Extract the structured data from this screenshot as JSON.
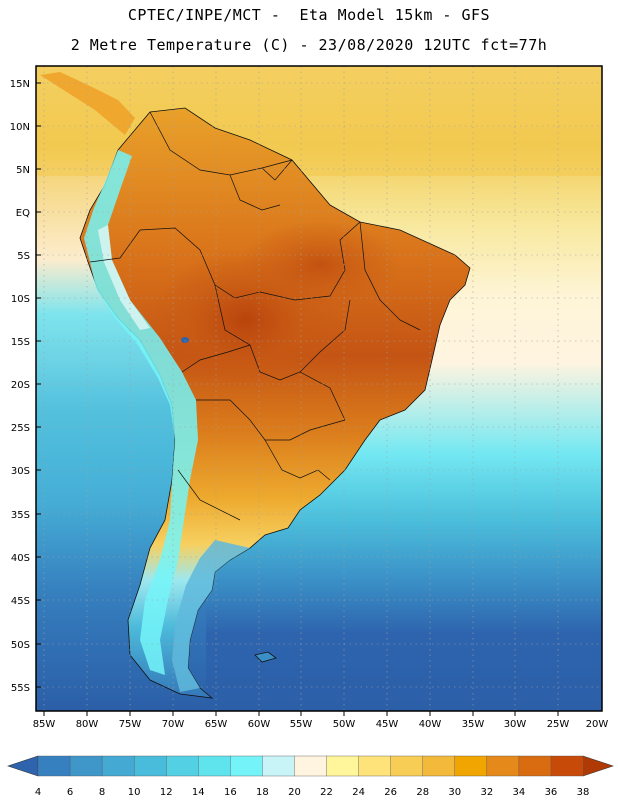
{
  "header": {
    "line1": "CPTEC/INPE/MCT -  Eta Model 15km - GFS",
    "line2": "2 Metre Temperature (C) - 23/08/2020 12UTC fct=77h"
  },
  "map": {
    "region": "South America",
    "lat_labels": [
      "15N",
      "10N",
      "5N",
      "EQ",
      "5S",
      "10S",
      "15S",
      "20S",
      "25S",
      "30S",
      "35S",
      "40S",
      "45S",
      "50S",
      "55S"
    ],
    "lon_labels": [
      "85W",
      "80W",
      "75W",
      "70W",
      "65W",
      "60W",
      "55W",
      "50W",
      "45W",
      "40W",
      "35W",
      "30W",
      "25W",
      "20W"
    ]
  },
  "colorbar": {
    "labels": [
      "4",
      "6",
      "8",
      "10",
      "12",
      "14",
      "16",
      "18",
      "20",
      "22",
      "24",
      "26",
      "28",
      "30",
      "32",
      "34",
      "36",
      "38"
    ],
    "colors": [
      "#2e64ae",
      "#3680bf",
      "#3f96c8",
      "#44aad4",
      "#49bcdc",
      "#53d0e4",
      "#5fe4ee",
      "#74f4f8",
      "#c8f4f8",
      "#fff4e0",
      "#fff59a",
      "#fee27a",
      "#f8cd55",
      "#f2b93a",
      "#f0a500",
      "#e58a1a",
      "#d96c10",
      "#c84a08",
      "#b03a06"
    ]
  },
  "colors": {
    "ocean_cold": "#2b61ad",
    "ocean_mid": "#43a9d3",
    "ocean_warm": "#f1cd58",
    "land_hot": "#c85a14",
    "land_warm": "#e7941f",
    "andes": "#74f4f8"
  }
}
